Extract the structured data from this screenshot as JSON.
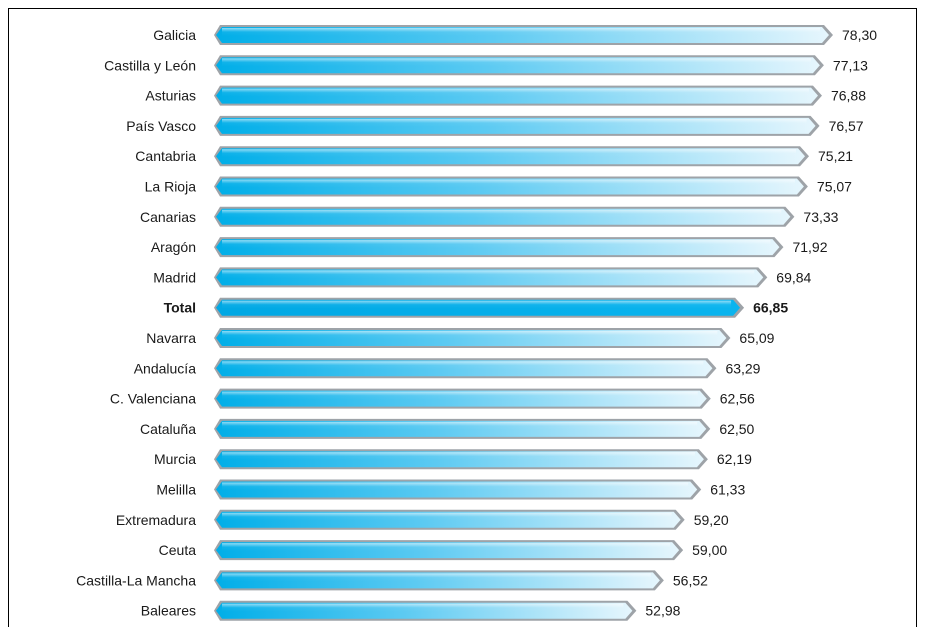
{
  "chart_data": {
    "type": "bar",
    "orientation": "horizontal",
    "categories": [
      "Galicia",
      "Castilla y León",
      "Asturias",
      "País Vasco",
      "Cantabria",
      "La Rioja",
      "Canarias",
      "Aragón",
      "Madrid",
      "Total",
      "Navarra",
      "Andalucía",
      "C. Valenciana",
      "Cataluña",
      "Murcia",
      "Melilla",
      "Extremadura",
      "Ceuta",
      "Castilla-La Mancha",
      "Baleares"
    ],
    "values": [
      78.3,
      77.13,
      76.88,
      76.57,
      75.21,
      75.07,
      73.33,
      71.92,
      69.84,
      66.85,
      65.09,
      63.29,
      62.56,
      62.5,
      62.19,
      61.33,
      59.2,
      59.0,
      56.52,
      52.98
    ],
    "value_labels": [
      "78,30",
      "77,13",
      "76,88",
      "76,57",
      "75,21",
      "75,07",
      "73,33",
      "71,92",
      "69,84",
      "66,85",
      "65,09",
      "63,29",
      "62,56",
      "62,50",
      "62,19",
      "61,33",
      "59,20",
      "59,00",
      "56,52",
      "52,98"
    ],
    "highlight_category": "Total",
    "title": "",
    "xlabel": "",
    "ylabel": "",
    "grid": false,
    "legend": "none",
    "colors": {
      "bar_start": "#00aee8",
      "bar_end": "#e6f6fd",
      "bar_shadow": "#9ea3a8",
      "highlight_start": "#00a8e4",
      "highlight_end": "#0ab4ee"
    }
  }
}
